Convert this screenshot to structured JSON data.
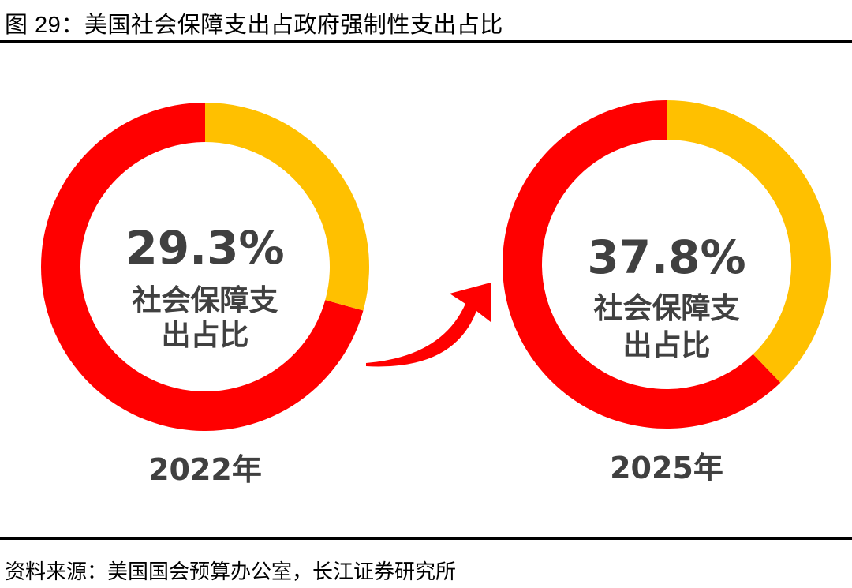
{
  "title": "图 29：美国社会保障支出占政府强制性支出占比",
  "source": "资料来源：美国国会预算办公室，长江证券研究所",
  "colors": {
    "share": "#FFC000",
    "rest": "#FF0000",
    "center_text": "#404040",
    "year_text": "#404040",
    "arrow": "#FF0000"
  },
  "chart_data": [
    {
      "type": "donut",
      "value": 29.3,
      "value_label": "29.3%",
      "center_label_lines": [
        "社会保障支",
        "出占比"
      ],
      "category": "2022年"
    },
    {
      "type": "donut",
      "value": 37.8,
      "value_label": "37.8%",
      "center_label_lines": [
        "社会保障支",
        "出占比"
      ],
      "category": "2025年"
    }
  ]
}
